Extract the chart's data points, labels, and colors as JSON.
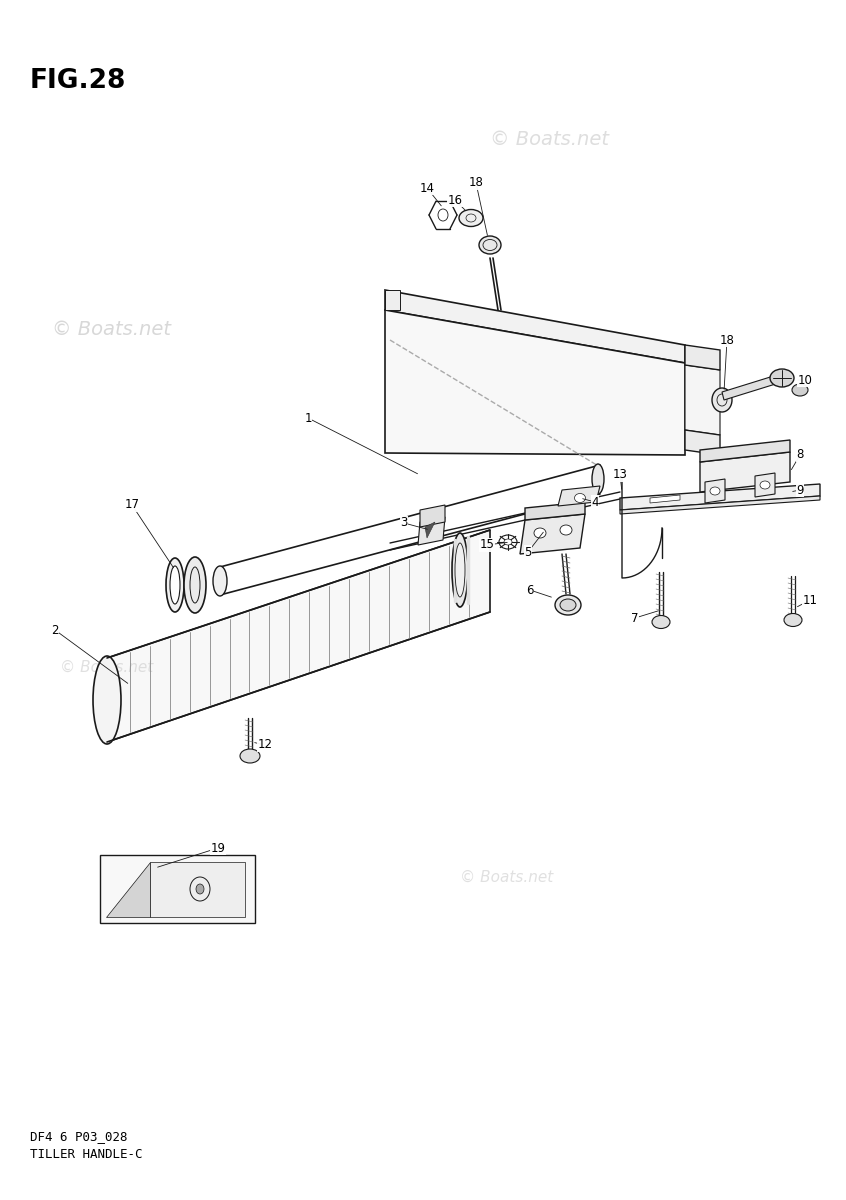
{
  "title": "FIG.28",
  "watermark": "© Boats.net",
  "footer_line1": "DF4 6 P03_028",
  "footer_line2": "TILLER HANDLE-C",
  "bg_color": "#ffffff",
  "line_color": "#1a1a1a",
  "wm_color": "#c8c8c8",
  "fig_width": 8.46,
  "fig_height": 12.0,
  "dpi": 100
}
